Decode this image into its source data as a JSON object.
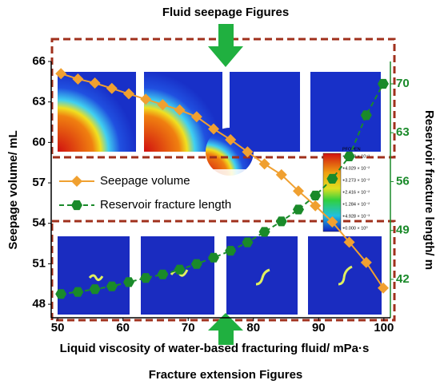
{
  "chart_data": {
    "type": "line",
    "title": "Fluid seepage Figures",
    "subtitle": "Fracture extension Figures",
    "x_label": "Liquid viscosity of water-based fracturing fluid/ mPa·s",
    "y_label": "Seepage volume/ mL",
    "y2_label": "Reservoir fracture length/ m",
    "x": [
      50.5,
      53.1,
      55.7,
      58.3,
      60.9,
      63.5,
      66.1,
      68.7,
      71.3,
      73.9,
      76.5,
      79.1,
      81.7,
      84.3,
      86.9,
      89.5,
      92.1,
      94.7,
      97.3,
      99.9
    ],
    "series": [
      {
        "name": "Seepage volume",
        "color": "#f0a030",
        "marker": "diamond",
        "linestyle": "solid",
        "axis": "y",
        "values": [
          65.1,
          64.7,
          64.4,
          64.0,
          63.6,
          63.2,
          62.8,
          62.4,
          61.9,
          61.0,
          60.2,
          59.3,
          58.4,
          57.6,
          56.4,
          55.3,
          54.1,
          52.6,
          51.1,
          49.2
        ]
      },
      {
        "name": "Reservoir fracture length",
        "color": "#1a8a2a",
        "marker": "hexagon",
        "linestyle": "dashed",
        "axis": "y2",
        "values": [
          39.9,
          40.2,
          40.6,
          41.0,
          41.6,
          42.2,
          42.7,
          43.4,
          44.2,
          45.1,
          46.1,
          47.3,
          48.8,
          50.3,
          52.0,
          54.0,
          56.4,
          59.6,
          65.5,
          70.0
        ]
      }
    ],
    "xlim": [
      49,
      101
    ],
    "xticks": [
      50,
      60,
      70,
      80,
      90,
      100
    ],
    "ylim": [
      47,
      66
    ],
    "yticks": [
      48,
      51,
      54,
      57,
      60,
      63,
      66
    ],
    "y2lim": [
      36.5,
      73.2
    ],
    "y2ticks": [
      42,
      49,
      56,
      63,
      70
    ],
    "legend": "upper left"
  },
  "colorbar": {
    "title": "PFOPEN",
    "labels": [
      "+5.873 × 10⁻¹",
      "+4.029 × 10⁻²",
      "+3.273 × 10⁻²",
      "+2.416 × 10⁻²",
      "+1.284 × 10⁻²",
      "+4.928 × 10⁻³",
      "+0.000 × 10⁰"
    ]
  }
}
